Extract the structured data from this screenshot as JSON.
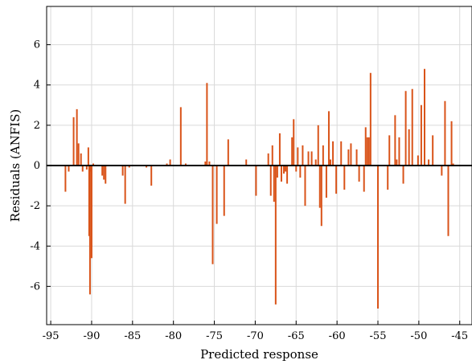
{
  "chart_data": {
    "type": "stem",
    "xlabel": "Predicted response",
    "ylabel": "Residuals (ANFIS)",
    "xlim": [
      -95.5,
      -43.5
    ],
    "ylim": [
      -7.9,
      7.9
    ],
    "xticks": [
      -95,
      -90,
      -85,
      -80,
      -75,
      -70,
      -65,
      -60,
      -55,
      -50,
      -45
    ],
    "yticks": [
      -6,
      -4,
      -2,
      0,
      2,
      4,
      6
    ],
    "grid": true,
    "bar_color": "#d95319",
    "baseline_color": "#000000",
    "series": [
      {
        "x": [
          -93.2,
          -92.8,
          -92.2,
          -91.8,
          -91.6,
          -91.3,
          -91.1,
          -90.6,
          -90.4,
          -90.3,
          -90.2,
          -90.1,
          -90.0,
          -89.8,
          -88.7,
          -88.5,
          -88.3,
          -86.2,
          -85.9,
          -85.4,
          -83.3,
          -82.7,
          -80.8,
          -80.4,
          -79.1,
          -78.5,
          -76.1,
          -75.9,
          -75.6,
          -75.2,
          -74.7,
          -73.8,
          -73.3,
          -71.1,
          -69.9,
          -68.4,
          -68.1,
          -67.9,
          -67.7,
          -67.5,
          -67.3,
          -67.0,
          -66.8,
          -66.5,
          -66.3,
          -66.1,
          -65.5,
          -65.3,
          -65.0,
          -64.8,
          -64.5,
          -64.2,
          -63.9,
          -63.5,
          -63.1,
          -62.6,
          -62.3,
          -62.1,
          -61.9,
          -61.7,
          -61.3,
          -61.0,
          -60.8,
          -60.5,
          -60.1,
          -59.5,
          -59.1,
          -58.6,
          -58.3,
          -57.6,
          -57.3,
          -56.7,
          -56.5,
          -56.3,
          -56.1,
          -55.9,
          -55.0,
          -53.8,
          -53.6,
          -52.9,
          -52.7,
          -52.4,
          -51.9,
          -51.6,
          -51.2,
          -50.8,
          -50.1,
          -49.7,
          -49.3,
          -48.8,
          -48.3,
          -47.2,
          -46.8,
          -46.4,
          -46.0,
          -45.8
        ],
        "y": [
          -1.3,
          -0.3,
          2.4,
          2.8,
          1.1,
          0.6,
          -0.3,
          -0.2,
          0.9,
          -3.5,
          -6.4,
          -0.3,
          -4.6,
          0.1,
          -0.5,
          -0.7,
          -0.9,
          -0.5,
          -1.9,
          -0.1,
          -0.1,
          -1.0,
          0.1,
          0.3,
          2.9,
          0.1,
          0.2,
          4.1,
          0.2,
          -4.9,
          -2.9,
          -2.5,
          1.3,
          0.3,
          -1.5,
          0.6,
          -1.5,
          1.0,
          -1.8,
          -6.9,
          -0.6,
          1.6,
          -0.8,
          -0.4,
          -0.3,
          -0.9,
          1.4,
          2.3,
          -0.3,
          0.9,
          -0.6,
          1.0,
          -2.0,
          0.7,
          0.7,
          0.3,
          2.0,
          -2.1,
          -3.0,
          1.0,
          -1.6,
          2.7,
          0.3,
          1.2,
          -1.4,
          1.2,
          -1.2,
          0.8,
          1.1,
          0.8,
          -0.8,
          -1.3,
          1.9,
          1.4,
          1.4,
          4.6,
          -7.1,
          -1.2,
          1.5,
          2.5,
          0.3,
          1.4,
          -0.9,
          3.7,
          1.8,
          3.8,
          0.5,
          3.0,
          4.8,
          0.3,
          1.5,
          -0.5,
          3.2,
          -3.5,
          2.2,
          0.1
        ]
      }
    ]
  }
}
